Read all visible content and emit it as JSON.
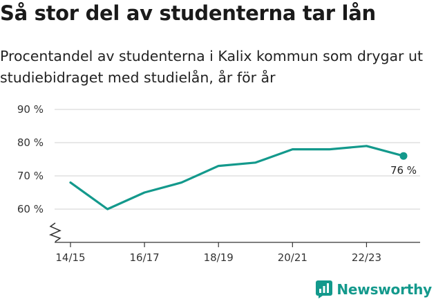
{
  "brand": {
    "name": "Newsworthy",
    "color": "#13998c",
    "icon": "newsworthy-logo-icon"
  },
  "chart_data": {
    "type": "line",
    "title": "Så stor del av studenterna tar lån",
    "subtitle": "Procentandel av studenterna i Kalix kommun som drygar ut studiebidraget med studielån, år för år",
    "x": [
      "14/15",
      "15/16",
      "16/17",
      "17/18",
      "18/19",
      "19/20",
      "20/21",
      "21/22",
      "22/23",
      "23/24"
    ],
    "x_tick_labels": [
      "14/15",
      "16/17",
      "18/19",
      "20/21",
      "22/23"
    ],
    "series": [
      {
        "values": [
          68,
          60,
          65,
          68,
          73,
          74,
          78,
          78,
          79,
          76
        ],
        "color": "#13998c"
      }
    ],
    "y_ticks": [
      60,
      70,
      80,
      90
    ],
    "y_tick_suffix": " %",
    "ylim": [
      50,
      90
    ],
    "axis_break": true,
    "grid": true,
    "last_value_label": "76 %",
    "line_color": "#13998c",
    "grid_color": "#d9d9d9"
  }
}
